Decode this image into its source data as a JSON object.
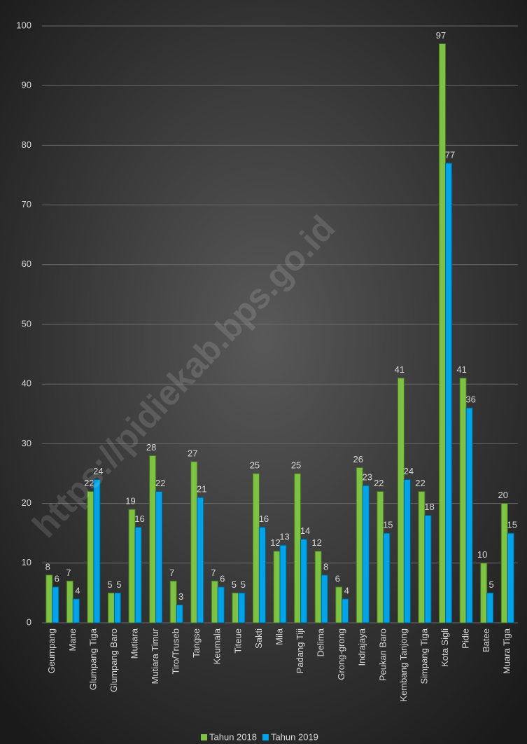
{
  "chart_data": {
    "type": "bar",
    "watermark": "https://pidiekab.bps.go.id",
    "categories": [
      "Geumpang",
      "Mane",
      "Glumpang Tiga",
      "Glumpang Baro",
      "Mutiara",
      "Mutiara Timur",
      "Tiro/Truseb",
      "Tangse",
      "Keumala",
      "Titeue",
      "Sakti",
      "Mila",
      "Padang Tiji",
      "Delima",
      "Grong-grong",
      "Indrajaya",
      "Peukan Baro",
      "Kembang Tanjong",
      "Simpang Tiga",
      "Kota Sigli",
      "Pidie",
      "Batee",
      "Muara Tiga"
    ],
    "series": [
      {
        "name": "Tahun 2018",
        "color": "#7dc242",
        "values": [
          8,
          7,
          22,
          5,
          19,
          28,
          7,
          27,
          7,
          5,
          25,
          12,
          25,
          12,
          6,
          26,
          22,
          41,
          22,
          97,
          41,
          10,
          20
        ]
      },
      {
        "name": "Tahun 2019",
        "color": "#00a3e8",
        "values": [
          6,
          4,
          24,
          5,
          16,
          22,
          3,
          21,
          6,
          5,
          16,
          13,
          14,
          8,
          4,
          23,
          15,
          24,
          18,
          77,
          36,
          5,
          15
        ]
      }
    ],
    "ylim": [
      0,
      100
    ],
    "yticks": [
      0,
      10,
      20,
      30,
      40,
      50,
      60,
      70,
      80,
      90,
      100
    ],
    "grid": true,
    "legend": "bottom"
  }
}
